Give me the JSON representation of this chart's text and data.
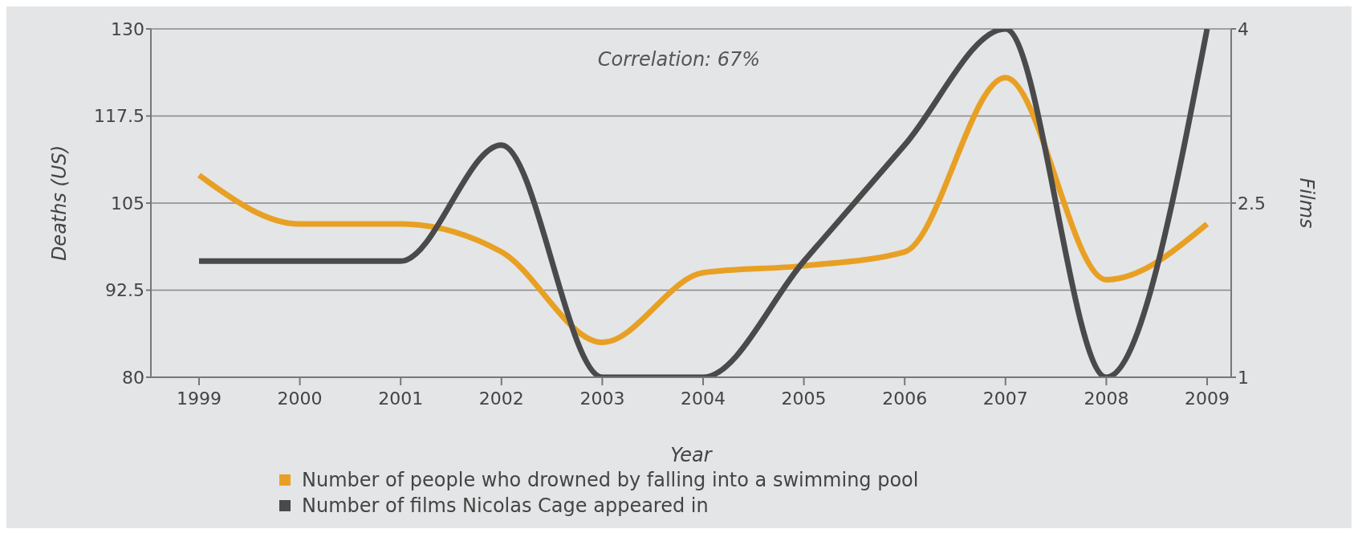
{
  "chart_data": {
    "type": "line",
    "xlabel": "Year",
    "ylabel": "Deaths (US)",
    "y2label": "Films",
    "categories": [
      "1999",
      "2000",
      "2001",
      "2002",
      "2003",
      "2004",
      "2005",
      "2006",
      "2007",
      "2008",
      "2009"
    ],
    "series": [
      {
        "name": "Number of people who drowned by falling into a swimming pool",
        "color": "#e8a024",
        "values": [
          109,
          102,
          102,
          98,
          85,
          95,
          96,
          98,
          123,
          94,
          102
        ]
      },
      {
        "name": "Number of films Nicolas Cage appeared in",
        "color": "#4a4a4a",
        "axis": "y2",
        "values": [
          2,
          2,
          2,
          3,
          1,
          1,
          2,
          3,
          4,
          1,
          4
        ]
      }
    ],
    "ylim": [
      80,
      130
    ],
    "yticks": [
      80,
      92.5,
      105,
      117.5,
      130
    ],
    "y2lim": [
      1,
      4
    ],
    "y2ticks": [
      1,
      2.5,
      4
    ],
    "annotations": [
      "Correlation: 67%"
    ],
    "grid": "y",
    "legend": "bottom",
    "marker": "none",
    "line_style": "solid"
  }
}
